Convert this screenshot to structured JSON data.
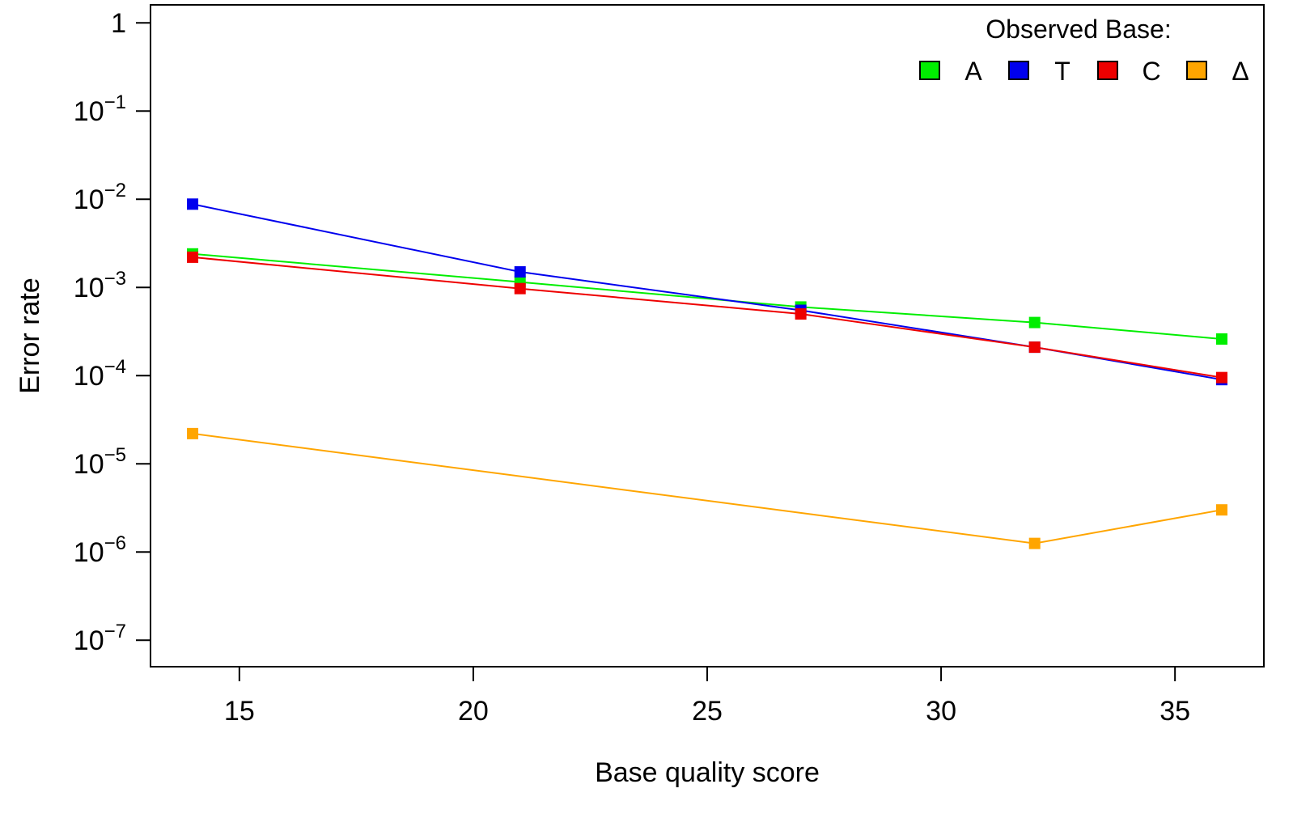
{
  "chart_data": {
    "type": "line",
    "xlabel": "Base quality score",
    "ylabel": "Error rate",
    "x": [
      14,
      21,
      27,
      32,
      36
    ],
    "xlim": [
      13.1,
      36.9
    ],
    "xticks": [
      15,
      20,
      25,
      30,
      35
    ],
    "y_scale": "log",
    "ylim": [
      5e-08,
      1.6
    ],
    "yticks": [
      {
        "value": 1,
        "base": "1",
        "exp": ""
      },
      {
        "value": 0.1,
        "base": "10",
        "exp": "−1"
      },
      {
        "value": 0.01,
        "base": "10",
        "exp": "−2"
      },
      {
        "value": 0.001,
        "base": "10",
        "exp": "−3"
      },
      {
        "value": 0.0001,
        "base": "10",
        "exp": "−4"
      },
      {
        "value": 1e-05,
        "base": "10",
        "exp": "−5"
      },
      {
        "value": 1e-06,
        "base": "10",
        "exp": "−6"
      },
      {
        "value": 1e-07,
        "base": "10",
        "exp": "−7"
      }
    ],
    "legend": {
      "title": "Observed Base:",
      "position": "top-right"
    },
    "grid": false,
    "series": [
      {
        "name": "A",
        "color": "#00ee00",
        "values": [
          0.0024,
          0.00115,
          0.0006,
          0.0004,
          0.00026
        ]
      },
      {
        "name": "T",
        "color": "#0000ee",
        "values": [
          0.0088,
          0.0015,
          0.00055,
          0.00021,
          9e-05
        ]
      },
      {
        "name": "C",
        "color": "#ee0000",
        "values": [
          0.0022,
          0.00097,
          0.0005,
          0.00021,
          9.5e-05
        ]
      },
      {
        "name": "Δ",
        "color": "#ffa500",
        "values": [
          2.2e-05,
          null,
          null,
          1.25e-06,
          3e-06
        ]
      }
    ]
  }
}
